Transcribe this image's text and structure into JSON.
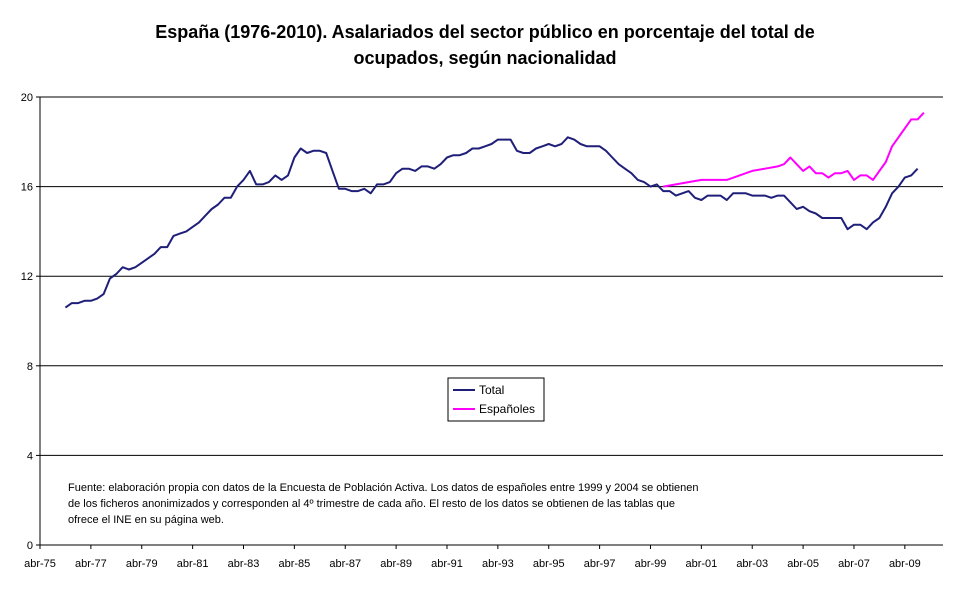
{
  "chart_data": {
    "type": "line",
    "title_lines": [
      "España (1976-2010). Asalariados del sector público en porcentaje del total de",
      "ocupados, según nacionalidad"
    ],
    "x_tick_labels": [
      "abr-75",
      "abr-77",
      "abr-79",
      "abr-81",
      "abr-83",
      "abr-85",
      "abr-87",
      "abr-89",
      "abr-91",
      "abr-93",
      "abr-95",
      "abr-97",
      "abr-99",
      "abr-01",
      "abr-03",
      "abr-05",
      "abr-07",
      "abr-09"
    ],
    "xlim": [
      "1975-04",
      "2010-10"
    ],
    "ylim": [
      0,
      20
    ],
    "y_ticks": [
      0,
      4,
      8,
      12,
      16,
      20
    ],
    "grid": "horizontal",
    "legend_placement": "center",
    "series": [
      {
        "name": "Total",
        "color": "#1f1f7a",
        "points": [
          [
            "1976-04",
            10.6
          ],
          [
            "1976-07",
            10.8
          ],
          [
            "1976-10",
            10.8
          ],
          [
            "1977-01",
            10.9
          ],
          [
            "1977-04",
            10.9
          ],
          [
            "1977-07",
            11.0
          ],
          [
            "1977-10",
            11.2
          ],
          [
            "1978-01",
            11.9
          ],
          [
            "1978-04",
            12.1
          ],
          [
            "1978-07",
            12.4
          ],
          [
            "1978-10",
            12.3
          ],
          [
            "1979-01",
            12.4
          ],
          [
            "1979-04",
            12.6
          ],
          [
            "1979-07",
            12.8
          ],
          [
            "1979-10",
            13.0
          ],
          [
            "1980-01",
            13.3
          ],
          [
            "1980-04",
            13.3
          ],
          [
            "1980-07",
            13.8
          ],
          [
            "1980-10",
            13.9
          ],
          [
            "1981-01",
            14.0
          ],
          [
            "1981-04",
            14.2
          ],
          [
            "1981-07",
            14.4
          ],
          [
            "1981-10",
            14.7
          ],
          [
            "1982-01",
            15.0
          ],
          [
            "1982-04",
            15.2
          ],
          [
            "1982-07",
            15.5
          ],
          [
            "1982-10",
            15.5
          ],
          [
            "1983-01",
            16.0
          ],
          [
            "1983-04",
            16.3
          ],
          [
            "1983-07",
            16.7
          ],
          [
            "1983-10",
            16.1
          ],
          [
            "1984-01",
            16.1
          ],
          [
            "1984-04",
            16.2
          ],
          [
            "1984-07",
            16.5
          ],
          [
            "1984-10",
            16.3
          ],
          [
            "1985-01",
            16.5
          ],
          [
            "1985-04",
            17.3
          ],
          [
            "1985-07",
            17.7
          ],
          [
            "1985-10",
            17.5
          ],
          [
            "1986-01",
            17.6
          ],
          [
            "1986-04",
            17.6
          ],
          [
            "1986-07",
            17.5
          ],
          [
            "1986-10",
            16.7
          ],
          [
            "1987-01",
            15.9
          ],
          [
            "1987-04",
            15.9
          ],
          [
            "1987-07",
            15.8
          ],
          [
            "1987-10",
            15.8
          ],
          [
            "1988-01",
            15.9
          ],
          [
            "1988-04",
            15.7
          ],
          [
            "1988-07",
            16.1
          ],
          [
            "1988-10",
            16.1
          ],
          [
            "1989-01",
            16.2
          ],
          [
            "1989-04",
            16.6
          ],
          [
            "1989-07",
            16.8
          ],
          [
            "1989-10",
            16.8
          ],
          [
            "1990-01",
            16.7
          ],
          [
            "1990-04",
            16.9
          ],
          [
            "1990-07",
            16.9
          ],
          [
            "1990-10",
            16.8
          ],
          [
            "1991-01",
            17.0
          ],
          [
            "1991-04",
            17.3
          ],
          [
            "1991-07",
            17.4
          ],
          [
            "1991-10",
            17.4
          ],
          [
            "1992-01",
            17.5
          ],
          [
            "1992-04",
            17.7
          ],
          [
            "1992-07",
            17.7
          ],
          [
            "1992-10",
            17.8
          ],
          [
            "1993-01",
            17.9
          ],
          [
            "1993-04",
            18.1
          ],
          [
            "1993-07",
            18.1
          ],
          [
            "1993-10",
            18.1
          ],
          [
            "1994-01",
            17.6
          ],
          [
            "1994-04",
            17.5
          ],
          [
            "1994-07",
            17.5
          ],
          [
            "1994-10",
            17.7
          ],
          [
            "1995-01",
            17.8
          ],
          [
            "1995-04",
            17.9
          ],
          [
            "1995-07",
            17.8
          ],
          [
            "1995-10",
            17.9
          ],
          [
            "1996-01",
            18.2
          ],
          [
            "1996-04",
            18.1
          ],
          [
            "1996-07",
            17.9
          ],
          [
            "1996-10",
            17.8
          ],
          [
            "1997-01",
            17.8
          ],
          [
            "1997-04",
            17.8
          ],
          [
            "1997-07",
            17.6
          ],
          [
            "1997-10",
            17.3
          ],
          [
            "1998-01",
            17.0
          ],
          [
            "1998-04",
            16.8
          ],
          [
            "1998-07",
            16.6
          ],
          [
            "1998-10",
            16.3
          ],
          [
            "1999-01",
            16.2
          ],
          [
            "1999-04",
            16.0
          ],
          [
            "1999-07",
            16.1
          ],
          [
            "1999-10",
            15.8
          ],
          [
            "2000-01",
            15.8
          ],
          [
            "2000-04",
            15.6
          ],
          [
            "2000-07",
            15.7
          ],
          [
            "2000-10",
            15.8
          ],
          [
            "2001-01",
            15.5
          ],
          [
            "2001-04",
            15.4
          ],
          [
            "2001-07",
            15.6
          ],
          [
            "2001-10",
            15.6
          ],
          [
            "2002-01",
            15.6
          ],
          [
            "2002-04",
            15.4
          ],
          [
            "2002-07",
            15.7
          ],
          [
            "2002-10",
            15.7
          ],
          [
            "2003-01",
            15.7
          ],
          [
            "2003-04",
            15.6
          ],
          [
            "2003-07",
            15.6
          ],
          [
            "2003-10",
            15.6
          ],
          [
            "2004-01",
            15.5
          ],
          [
            "2004-04",
            15.6
          ],
          [
            "2004-07",
            15.6
          ],
          [
            "2004-10",
            15.3
          ],
          [
            "2005-01",
            15.0
          ],
          [
            "2005-04",
            15.1
          ],
          [
            "2005-07",
            14.9
          ],
          [
            "2005-10",
            14.8
          ],
          [
            "2006-01",
            14.6
          ],
          [
            "2006-04",
            14.6
          ],
          [
            "2006-07",
            14.6
          ],
          [
            "2006-10",
            14.6
          ],
          [
            "2007-01",
            14.1
          ],
          [
            "2007-04",
            14.3
          ],
          [
            "2007-07",
            14.3
          ],
          [
            "2007-10",
            14.1
          ],
          [
            "2008-01",
            14.4
          ],
          [
            "2008-04",
            14.6
          ],
          [
            "2008-07",
            15.1
          ],
          [
            "2008-10",
            15.7
          ],
          [
            "2009-01",
            16.0
          ],
          [
            "2009-04",
            16.4
          ],
          [
            "2009-07",
            16.5
          ],
          [
            "2009-10",
            16.8
          ]
        ]
      },
      {
        "name": "Españoles",
        "color": "#ff00ff",
        "points": [
          [
            "1999-10",
            16.0
          ],
          [
            "2000-04",
            16.1
          ],
          [
            "2000-10",
            16.2
          ],
          [
            "2001-04",
            16.3
          ],
          [
            "2001-10",
            16.3
          ],
          [
            "2002-04",
            16.3
          ],
          [
            "2002-10",
            16.5
          ],
          [
            "2003-04",
            16.7
          ],
          [
            "2003-10",
            16.8
          ],
          [
            "2004-04",
            16.9
          ],
          [
            "2004-07",
            17.0
          ],
          [
            "2004-10",
            17.3
          ],
          [
            "2005-01",
            17.0
          ],
          [
            "2005-04",
            16.7
          ],
          [
            "2005-07",
            16.9
          ],
          [
            "2005-10",
            16.6
          ],
          [
            "2006-01",
            16.6
          ],
          [
            "2006-04",
            16.4
          ],
          [
            "2006-07",
            16.6
          ],
          [
            "2006-10",
            16.6
          ],
          [
            "2007-01",
            16.7
          ],
          [
            "2007-04",
            16.3
          ],
          [
            "2007-07",
            16.5
          ],
          [
            "2007-10",
            16.5
          ],
          [
            "2008-01",
            16.3
          ],
          [
            "2008-04",
            16.7
          ],
          [
            "2008-07",
            17.1
          ],
          [
            "2008-10",
            17.8
          ],
          [
            "2009-01",
            18.2
          ],
          [
            "2009-04",
            18.6
          ],
          [
            "2009-07",
            19.0
          ],
          [
            "2009-10",
            19.0
          ],
          [
            "2010-01",
            19.3
          ]
        ]
      }
    ],
    "legend": [
      "Total",
      "Españoles"
    ],
    "source_note_lines": [
      "Fuente: elaboración propia con datos de la Encuesta de Población Activa. Los datos de españoles entre 1999 y 2004 se obtienen",
      "de los ficheros anonimizados y corresponden al 4º trimestre de cada año. El resto de los datos se obtienen de las tablas que",
      "ofrece el INE en su página web."
    ]
  }
}
